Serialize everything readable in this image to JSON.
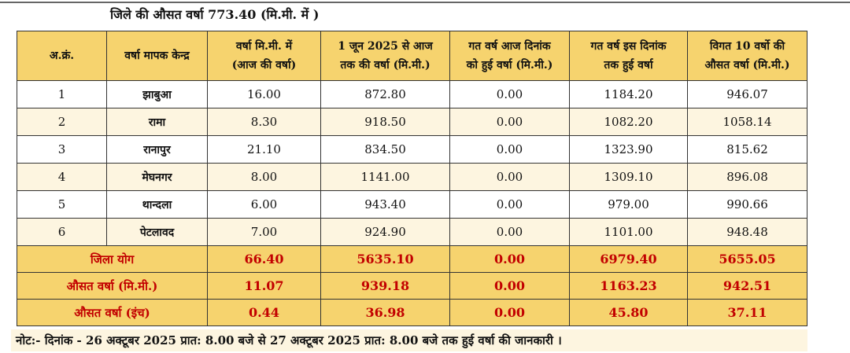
{
  "heading": "जिले की औसत वर्षा 773.40 (मि.मी. में )",
  "columns": [
    {
      "line1": "अ.क्रं.",
      "line2": ""
    },
    {
      "line1": "वर्षा मापक केन्द्र",
      "line2": ""
    },
    {
      "line1": "वर्षा मि.मी. में",
      "line2": "(आज की वर्षा)"
    },
    {
      "line1": "1 जून 2025 से आज",
      "line2": "तक की वर्षा (मि.मी.)"
    },
    {
      "line1": "गत वर्ष आज दिनांक",
      "line2": "को हुई वर्षा (मि.मी.)"
    },
    {
      "line1": "गत वर्ष इस दिनांक",
      "line2": "तक हुई वर्षा"
    },
    {
      "line1": "विगत 10 वर्षो  की",
      "line2": "औसत वर्षा (मि.मी.)"
    }
  ],
  "rows": [
    {
      "sno": "1",
      "station": "झाबुआ",
      "today": "16.00",
      "since_june": "872.80",
      "last_year_today": "0.00",
      "last_year_till": "1184.20",
      "avg10": "946.07"
    },
    {
      "sno": "2",
      "station": "रामा",
      "today": "8.30",
      "since_june": "918.50",
      "last_year_today": "0.00",
      "last_year_till": "1082.20",
      "avg10": "1058.14"
    },
    {
      "sno": "3",
      "station": "रानापुर",
      "today": "21.10",
      "since_june": "834.50",
      "last_year_today": "0.00",
      "last_year_till": "1323.90",
      "avg10": "815.62"
    },
    {
      "sno": "4",
      "station": "मेघनगर",
      "today": "8.00",
      "since_june": "1141.00",
      "last_year_today": "0.00",
      "last_year_till": "1309.10",
      "avg10": "896.08"
    },
    {
      "sno": "5",
      "station": "थान्दला",
      "today": "6.00",
      "since_june": "943.40",
      "last_year_today": "0.00",
      "last_year_till": "979.00",
      "avg10": "990.66"
    },
    {
      "sno": "6",
      "station": "पेटलावद",
      "today": "7.00",
      "since_june": "924.90",
      "last_year_today": "0.00",
      "last_year_till": "1101.00",
      "avg10": "948.48"
    }
  ],
  "summary": [
    {
      "label": "जिला योग",
      "today": "66.40",
      "since_june": "5635.10",
      "last_year_today": "0.00",
      "last_year_till": "6979.40",
      "avg10": "5655.05"
    },
    {
      "label": "औसत वर्षा (मि.मी.)",
      "today": "11.07",
      "since_june": "939.18",
      "last_year_today": "0.00",
      "last_year_till": "1163.23",
      "avg10": "942.51"
    },
    {
      "label": "औसत वर्षा (इंच)",
      "today": "0.44",
      "since_june": "36.98",
      "last_year_today": "0.00",
      "last_year_till": "45.80",
      "avg10": "37.11"
    }
  ],
  "note": "नोट:-  दिनांक - 26 अक्टूबर 2025 प्रात: 8.00 बजे से  27 अक्टूबर 2025 प्रात: 8.00 बजे तक हुई वर्षा की जानकारी ।",
  "colors": {
    "header_gold": "#f6d36e",
    "row_cream": "#fdf5e0",
    "label_red": "#c20000"
  }
}
